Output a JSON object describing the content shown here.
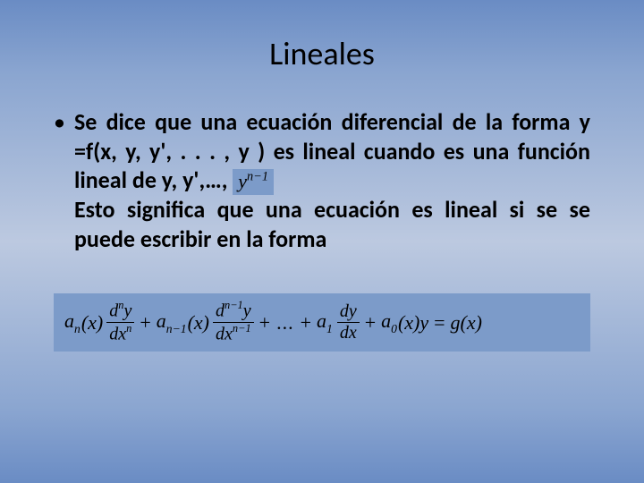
{
  "slide": {
    "title": "Lineales",
    "bullet_glyph": "•",
    "body_line1": "Se dice que una ecuación diferencial de la",
    "body_line2_a": "forma y =f(x, y, y', . . . , y ) es lineal cuando es",
    "body_line3_a": "una función lineal de y, y',…, ",
    "inline_math_base": "y",
    "inline_math_exp": "n−1",
    "body_line4": "Esto significa que una ecuación es lineal si se",
    "body_line5": "se puede escribir en la forma"
  },
  "equation": {
    "a": "a",
    "n": "n",
    "n_minus_1": "n−1",
    "one": "1",
    "zero": "0",
    "x_arg": "(x)",
    "d": "d",
    "y": "y",
    "dx": "dx",
    "dy": "dy",
    "plus": "+",
    "eq": "=",
    "dots": "...",
    "g": "g",
    "background": "#7c9bc9",
    "font_family": "Cambria Math",
    "font_size_pt": 17
  },
  "style": {
    "bg_gradient_top": "#6a8cc4",
    "bg_gradient_mid": "#bcc9e0",
    "title_fontsize_pt": 27,
    "body_fontsize_pt": 20,
    "body_weight": "bold",
    "text_color": "#000000",
    "inline_math_bg": "#7c9bc9"
  }
}
